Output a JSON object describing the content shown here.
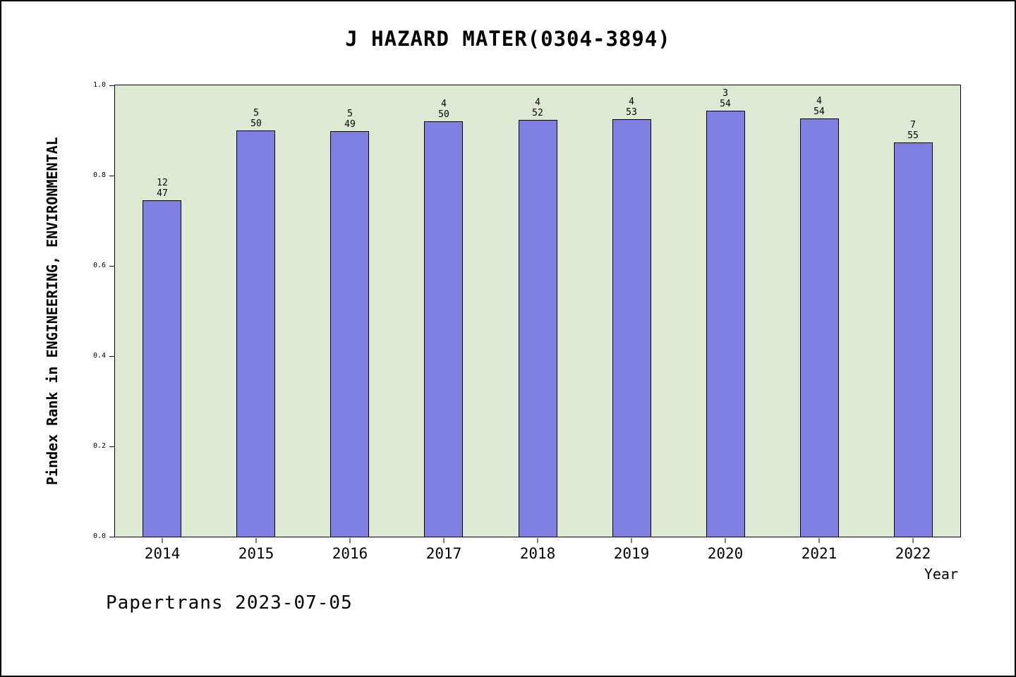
{
  "title": "J HAZARD MATER(0304-3894)",
  "footer": "Papertrans 2023-07-05",
  "chart_data": {
    "type": "bar",
    "title": "J HAZARD MATER(0304-3894)",
    "xlabel": "Year",
    "ylabel": "Pindex Rank in ENGINEERING, ENVIRONMENTAL",
    "ylim": [
      0.0,
      1.0
    ],
    "yticks": [
      0.0,
      0.2,
      0.4,
      0.6,
      0.8,
      1.0
    ],
    "categories": [
      "2014",
      "2015",
      "2016",
      "2017",
      "2018",
      "2019",
      "2020",
      "2021",
      "2022"
    ],
    "values": [
      0.745,
      0.9,
      0.898,
      0.92,
      0.923,
      0.925,
      0.944,
      0.926,
      0.873
    ],
    "bar_labels": [
      [
        "12",
        "47"
      ],
      [
        "5",
        "50"
      ],
      [
        "5",
        "49"
      ],
      [
        "4",
        "50"
      ],
      [
        "4",
        "52"
      ],
      [
        "4",
        "53"
      ],
      [
        "3",
        "54"
      ],
      [
        "4",
        "54"
      ],
      [
        "7",
        "55"
      ]
    ],
    "legend": null,
    "grid": false,
    "colors": {
      "bar_fill": "#7e7fe0",
      "bar_edge": "#000000",
      "plot_background": "#dde9d3",
      "page_background": "#ffffff"
    }
  }
}
